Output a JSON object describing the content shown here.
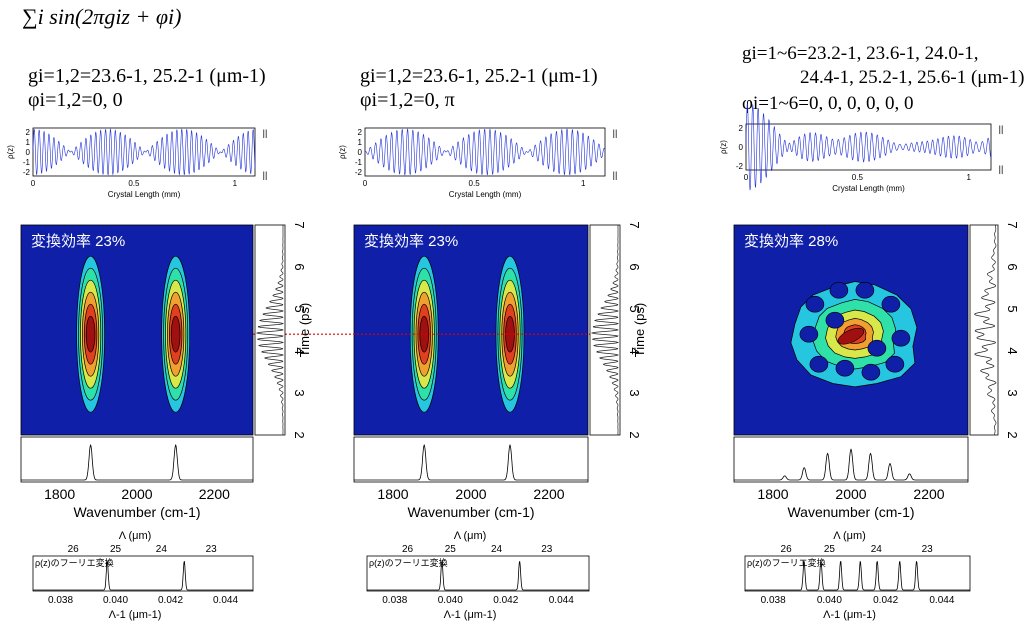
{
  "formula": "∑i sin(2πgiz + φi)",
  "panels": [
    {
      "id": "a",
      "params_line1": "gi=1,2=23.6-1, 25.2-1 (μm-1)",
      "params_line2": "φi=1,2=0, 0",
      "rho_ylabel": "ρ(z)",
      "rho_xlabel": "Crystal Length (mm)",
      "rho_xticks": [
        "0",
        "0.5",
        "1"
      ],
      "rho_yticks": [
        "2",
        "1",
        "0",
        "-1",
        "-2"
      ],
      "efficiency_label": "変換効率 23%",
      "time_label": "Time (ps)",
      "time_ticks": [
        "7",
        "6",
        "5",
        "4",
        "3",
        "2"
      ],
      "wn_xlabel": "Wavenumber (cm-1)",
      "wn_ticks": [
        "1800",
        "2000",
        "2200"
      ],
      "ft_title": "ρ(z)のフーリエ変換",
      "ft_top_label": "Λ (μm)",
      "ft_top_ticks": [
        "26",
        "25",
        "24",
        "23"
      ],
      "ft_bottom_label": "Λ-1 (μm-1)",
      "ft_bottom_ticks": [
        "0.038",
        "0.040",
        "0.042",
        "0.044"
      ]
    },
    {
      "id": "b",
      "params_line1": "gi=1,2=23.6-1, 25.2-1 (μm-1)",
      "params_line2": "φi=1,2=0, π",
      "rho_ylabel": "ρ(z)",
      "rho_xlabel": "Crystal Length (mm)",
      "rho_xticks": [
        "0",
        "0.5",
        "1"
      ],
      "rho_yticks": [
        "2",
        "1",
        "0",
        "-1",
        "-2"
      ],
      "efficiency_label": "変換効率 23%",
      "time_label": "Time (ps)",
      "time_ticks": [
        "7",
        "6",
        "5",
        "4",
        "3",
        "2"
      ],
      "wn_xlabel": "Wavenumber (cm-1)",
      "wn_ticks": [
        "1800",
        "2000",
        "2200"
      ],
      "ft_title": "ρ(z)のフーリエ変換",
      "ft_top_label": "Λ (μm)",
      "ft_top_ticks": [
        "26",
        "25",
        "24",
        "23"
      ],
      "ft_bottom_label": "Λ-1 (μm-1)",
      "ft_bottom_ticks": [
        "0.038",
        "0.040",
        "0.042",
        "0.044"
      ]
    },
    {
      "id": "c",
      "params_line1": "gi=1~6=23.2-1, 23.6-1, 24.0-1,",
      "params_line1b": "24.4-1, 25.2-1, 25.6-1 (μm-1)",
      "params_line2": "φi=1~6=0, 0, 0, 0, 0, 0",
      "rho_ylabel": "ρ(z)",
      "rho_xlabel": "Crystal Length (mm)",
      "rho_xticks": [
        "0",
        "0.5",
        "1"
      ],
      "rho_yticks": [
        "2",
        "0",
        "-2"
      ],
      "efficiency_label": "変換効率 28%",
      "time_ticks": [
        "7",
        "6",
        "5",
        "4",
        "3",
        "2"
      ],
      "wn_xlabel": "Wavenumber (cm-1)",
      "wn_ticks": [
        "1800",
        "2000",
        "2200"
      ],
      "ft_title": "ρ(z)のフーリエ変換",
      "ft_top_label": "Λ (μm)",
      "ft_top_ticks": [
        "26",
        "25",
        "24",
        "23"
      ],
      "ft_bottom_label": "Λ-1 (μm-1)",
      "ft_bottom_ticks": [
        "0.038",
        "0.040",
        "0.042",
        "0.044"
      ]
    }
  ],
  "chart_data": [
    {
      "type": "line",
      "panel": "a",
      "xlabel": "Crystal Length (mm)",
      "ylabel": "ρ(z)",
      "xlim": [
        0,
        1.1
      ],
      "ylim": [
        -2,
        2
      ],
      "g_inv_um": [
        23.6,
        25.2
      ],
      "phi": [
        0,
        0
      ]
    },
    {
      "type": "heatmap",
      "panel": "a",
      "xlabel": "Wavenumber (cm-1)",
      "ylabel": "Time (ps)",
      "xlim": [
        1700,
        2300
      ],
      "ylim": [
        2,
        7
      ],
      "efficiency_percent": 23,
      "peaks": [
        {
          "x": 1880,
          "y": 4.4
        },
        {
          "x": 2100,
          "y": 4.4
        }
      ]
    },
    {
      "type": "line",
      "panel": "b",
      "xlabel": "Crystal Length (mm)",
      "ylabel": "ρ(z)",
      "xlim": [
        0,
        1.1
      ],
      "ylim": [
        -2,
        2
      ],
      "g_inv_um": [
        23.6,
        25.2
      ],
      "phi": [
        0,
        3.1416
      ]
    },
    {
      "type": "heatmap",
      "panel": "b",
      "xlabel": "Wavenumber (cm-1)",
      "ylabel": "Time (ps)",
      "xlim": [
        1700,
        2300
      ],
      "ylim": [
        2,
        7
      ],
      "efficiency_percent": 23,
      "peaks": [
        {
          "x": 1880,
          "y": 4.4
        },
        {
          "x": 2100,
          "y": 4.4
        }
      ]
    },
    {
      "type": "line",
      "panel": "c",
      "xlabel": "Crystal Length (mm)",
      "ylabel": "ρ(z)",
      "xlim": [
        0,
        1.1
      ],
      "ylim": [
        -3,
        3
      ],
      "g_inv_um": [
        23.2,
        23.6,
        24.0,
        24.4,
        25.2,
        25.6
      ],
      "phi": [
        0,
        0,
        0,
        0,
        0,
        0
      ]
    },
    {
      "type": "heatmap",
      "panel": "c",
      "xlabel": "Wavenumber (cm-1)",
      "xlim": [
        1700,
        2300
      ],
      "ylim": [
        2,
        7
      ],
      "efficiency_percent": 28,
      "peaks": [
        {
          "x": 1970,
          "y": 4.6
        },
        {
          "x": 2010,
          "y": 4.4
        },
        {
          "x": 1990,
          "y": 4.2
        }
      ]
    },
    {
      "type": "line",
      "panel": "all",
      "xlabel": "Λ-1 (μm-1)",
      "xlim": [
        0.037,
        0.045
      ],
      "peaks_a": [
        0.0397,
        0.0425
      ],
      "peaks_b": [
        0.0397,
        0.0425
      ],
      "peaks_c": [
        0.0391,
        0.0397,
        0.0404,
        0.0411,
        0.0417,
        0.0425,
        0.0431
      ]
    }
  ],
  "colors": {
    "rho_wave": "#1f2fd8",
    "map_background": "#0f1fa8",
    "red_dashed_line": "#e00000"
  }
}
